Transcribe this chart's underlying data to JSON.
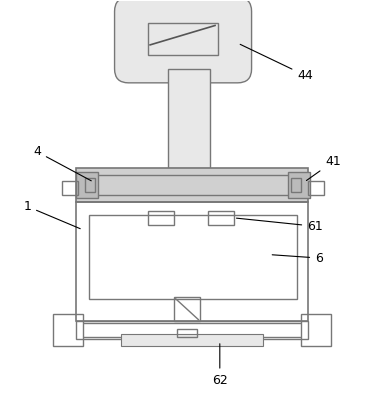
{
  "background_color": "#ffffff",
  "line_color": "#777777",
  "fill_light": "#d0d0d0",
  "fill_lighter": "#e8e8e8",
  "line_width": 1.0,
  "fig_width": 3.86,
  "fig_height": 3.98,
  "label_fontsize": 9
}
